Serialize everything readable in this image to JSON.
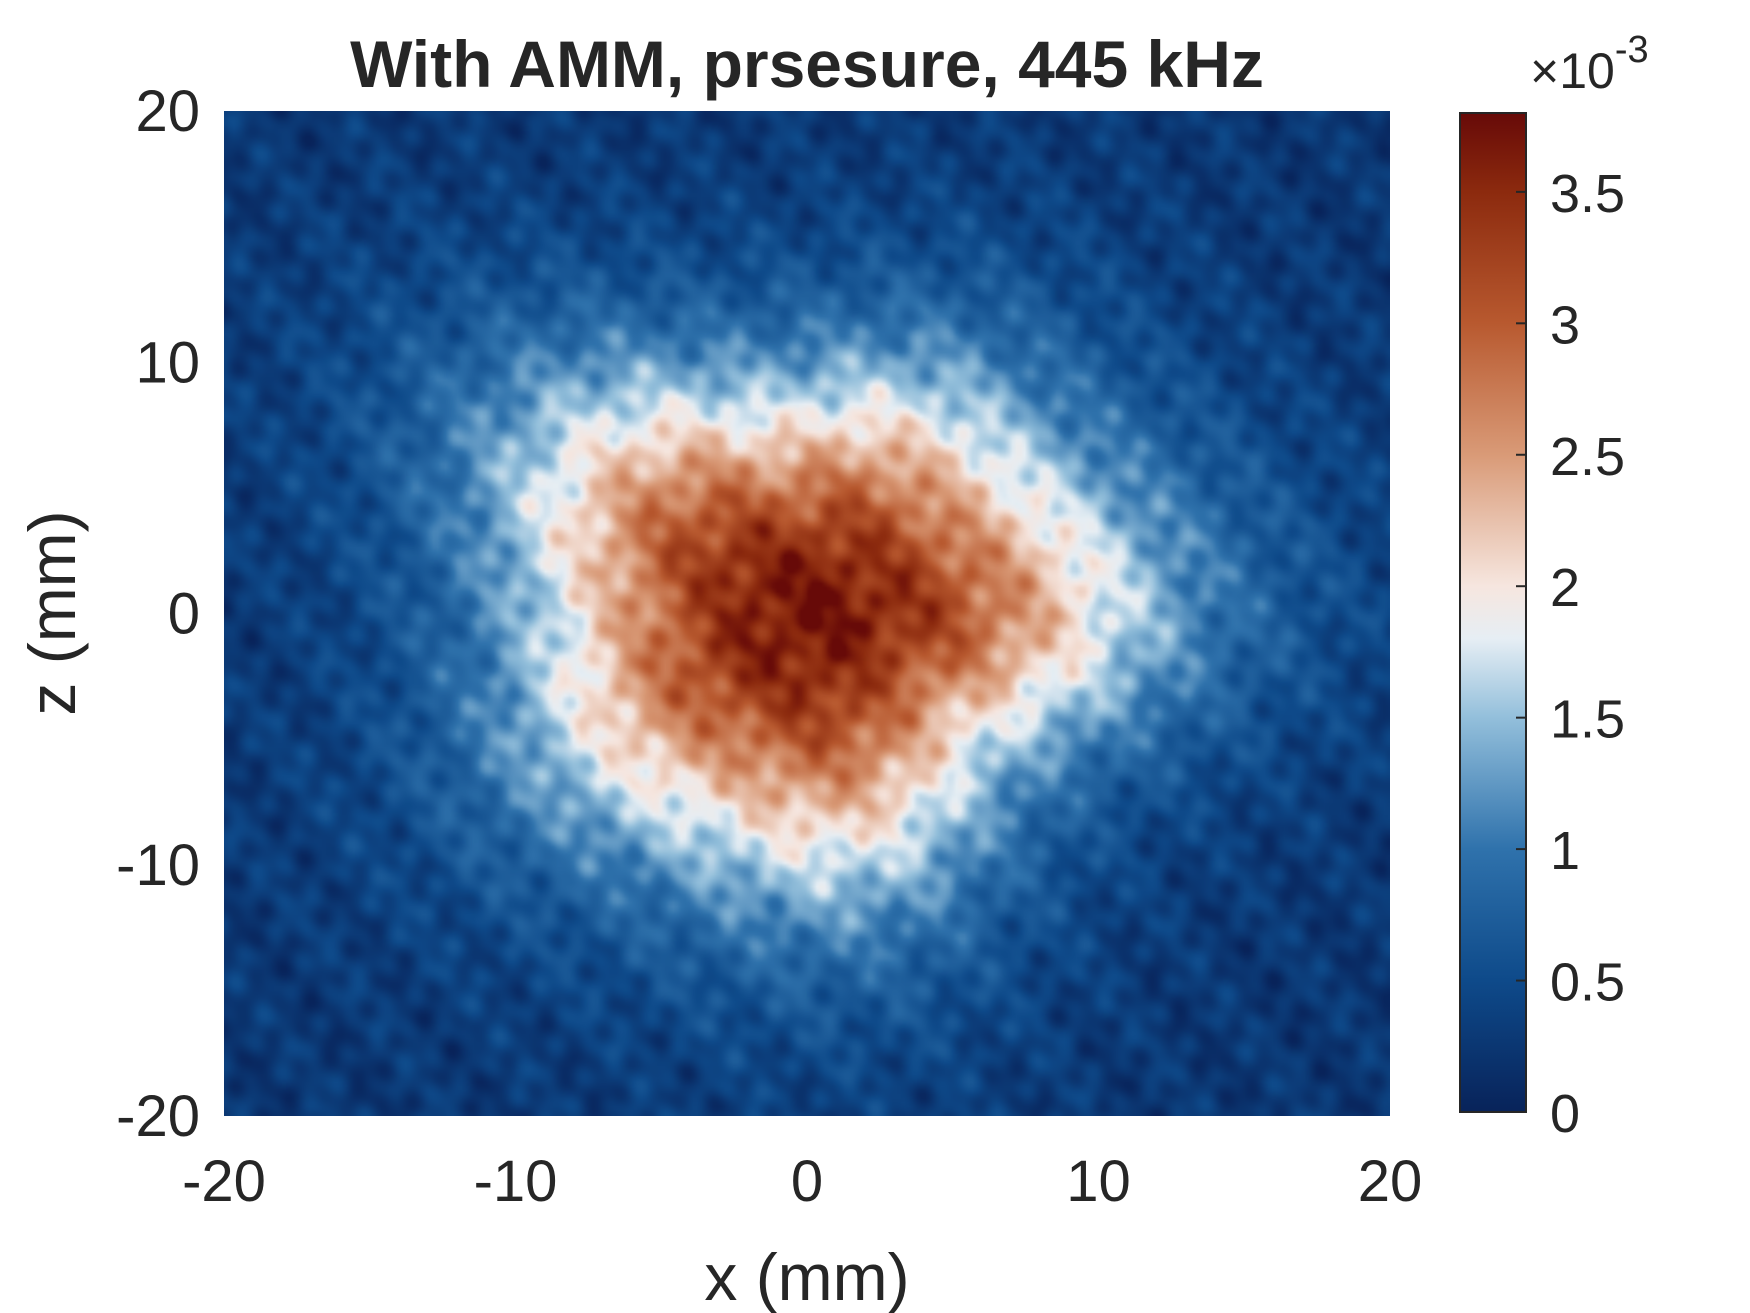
{
  "chart_data": {
    "type": "heatmap",
    "title": "With AMM, prsesure, 445 kHz",
    "xlabel": "x (mm)",
    "ylabel": "z (mm)",
    "xlim": [
      -20,
      20
    ],
    "ylim": [
      -20,
      20
    ],
    "x_ticks": [
      -20,
      -10,
      0,
      10,
      20
    ],
    "y_ticks": [
      -20,
      -10,
      0,
      10,
      20
    ],
    "x_tick_labels": [
      "-20",
      "-10",
      "0",
      "10",
      "20"
    ],
    "y_tick_labels": [
      "-20",
      "-10",
      "0",
      "10",
      "20"
    ],
    "colorbar": {
      "limits": [
        0,
        3.8
      ],
      "ticks": [
        0,
        0.5,
        1,
        1.5,
        2,
        2.5,
        3,
        3.5
      ],
      "tick_labels": [
        "0",
        "0.5",
        "1",
        "1.5",
        "2",
        "2.5",
        "3",
        "3.5"
      ],
      "exponent_prefix": "×10",
      "exponent": "-3",
      "colormap": [
        {
          "v": 0.0,
          "color": "#08235a"
        },
        {
          "v": 0.5,
          "color": "#0e4a8a"
        },
        {
          "v": 1.0,
          "color": "#2f72ac"
        },
        {
          "v": 1.5,
          "color": "#93bfdb"
        },
        {
          "v": 1.8,
          "color": "#e6eef4"
        },
        {
          "v": 2.0,
          "color": "#f6e6df"
        },
        {
          "v": 2.5,
          "color": "#d99a77"
        },
        {
          "v": 3.0,
          "color": "#b8592f"
        },
        {
          "v": 3.5,
          "color": "#8c2a0e"
        },
        {
          "v": 3.8,
          "color": "#670a08"
        }
      ]
    },
    "field": {
      "description_units": "pressure x 1e-3",
      "peak": {
        "x": 0.0,
        "z": 0.0,
        "value": 3.7
      },
      "falloff_radius_mm": 7.5,
      "background_value": 0.25
    }
  }
}
